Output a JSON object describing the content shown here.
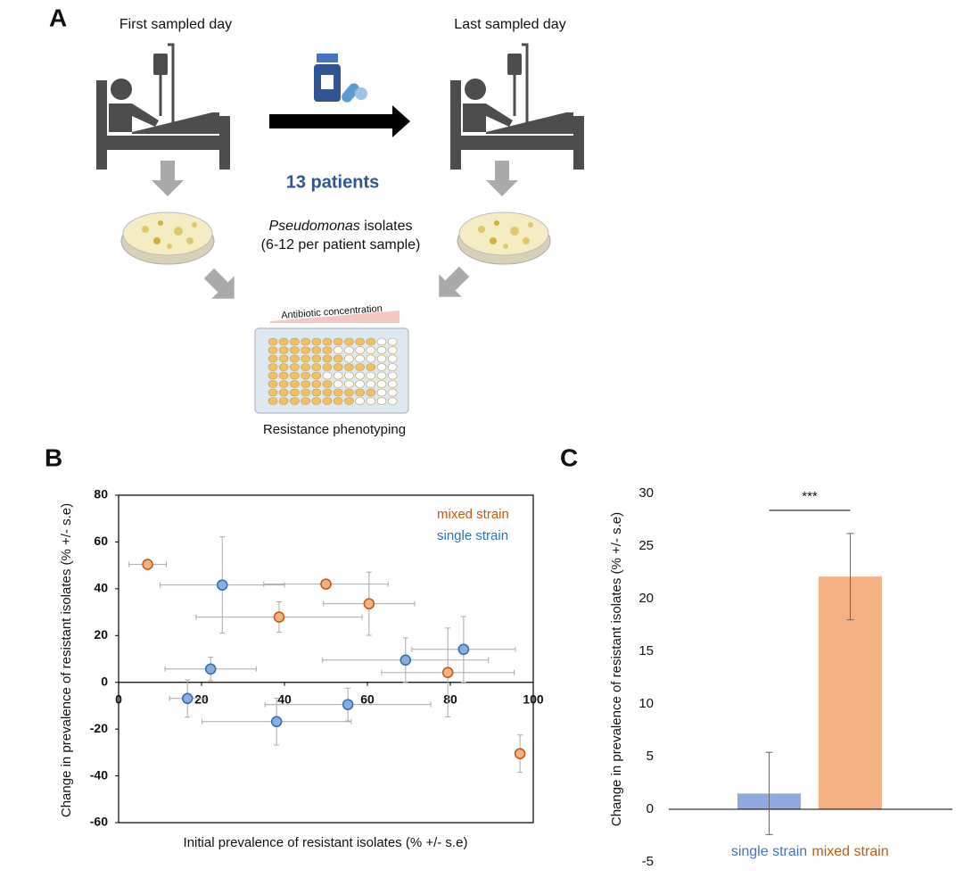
{
  "panel_labels": [
    "A",
    "B",
    "C"
  ],
  "panel_a": {
    "first_day": "First sampled day",
    "last_day": "Last sampled day",
    "patients": "13 patients",
    "isolates_italic": "Pseudomonas",
    "isolates_rest": "isolates",
    "isolates_note": "(6-12 per patient sample)",
    "gradient_label": "Antibiotic concentration",
    "plate_label": "Resistance phenotyping"
  },
  "chart_data": [
    {
      "type": "scatter",
      "x_label": "Initial prevalence of resistant isolates (% +/- s.e)",
      "y_label": "Change in prevalence of resistant isolates (% +/- s.e)",
      "xlim": [
        0,
        100
      ],
      "ylim": [
        -60,
        80
      ],
      "xticks": [
        0,
        20,
        40,
        60,
        80,
        100
      ],
      "yticks": [
        -60,
        -40,
        -20,
        0,
        20,
        40,
        60,
        80
      ],
      "legend": "upper right",
      "series": [
        {
          "name": "mixed strain",
          "color": "#f4b183",
          "edge_color": "#c55a11",
          "x": [
            7,
            50,
            38.7,
            60.4,
            79.4,
            96.8
          ],
          "values": [
            50.4,
            42,
            27.9,
            33.6,
            4.2,
            -30.5
          ],
          "xerr": [
            4.5,
            15,
            20,
            11,
            16,
            1
          ],
          "yerr": [
            1,
            1,
            6.5,
            13.5,
            19,
            8
          ]
        },
        {
          "name": "single strain",
          "color": "#8faadc",
          "edge_color": "#2e75b6",
          "x": [
            25,
            22.2,
            16.6,
            38.1,
            55.3,
            69.2,
            83.2
          ],
          "values": [
            41.6,
            5.7,
            -6.9,
            -16.8,
            -9.5,
            9.5,
            14.1
          ],
          "xerr": [
            15,
            11,
            4.3,
            18,
            20,
            20,
            12.5
          ],
          "yerr": [
            20.6,
            5,
            8,
            10,
            7,
            9.5,
            14
          ]
        }
      ]
    },
    {
      "type": "bar",
      "y_label": "Change in prevalence of resistant isolates (% +/- s.e)",
      "ylim": [
        -5,
        30
      ],
      "yticks": [
        -5,
        0,
        5,
        10,
        15,
        20,
        25,
        30
      ],
      "categories": [
        "single strain",
        "mixed strain"
      ],
      "values": [
        1.5,
        22.1
      ],
      "errors": [
        3.9,
        4.1
      ],
      "colors": [
        "#8faadc",
        "#f4b183"
      ],
      "label_colors": [
        "#4472c4",
        "#c55a11"
      ],
      "annotation": "***"
    }
  ]
}
